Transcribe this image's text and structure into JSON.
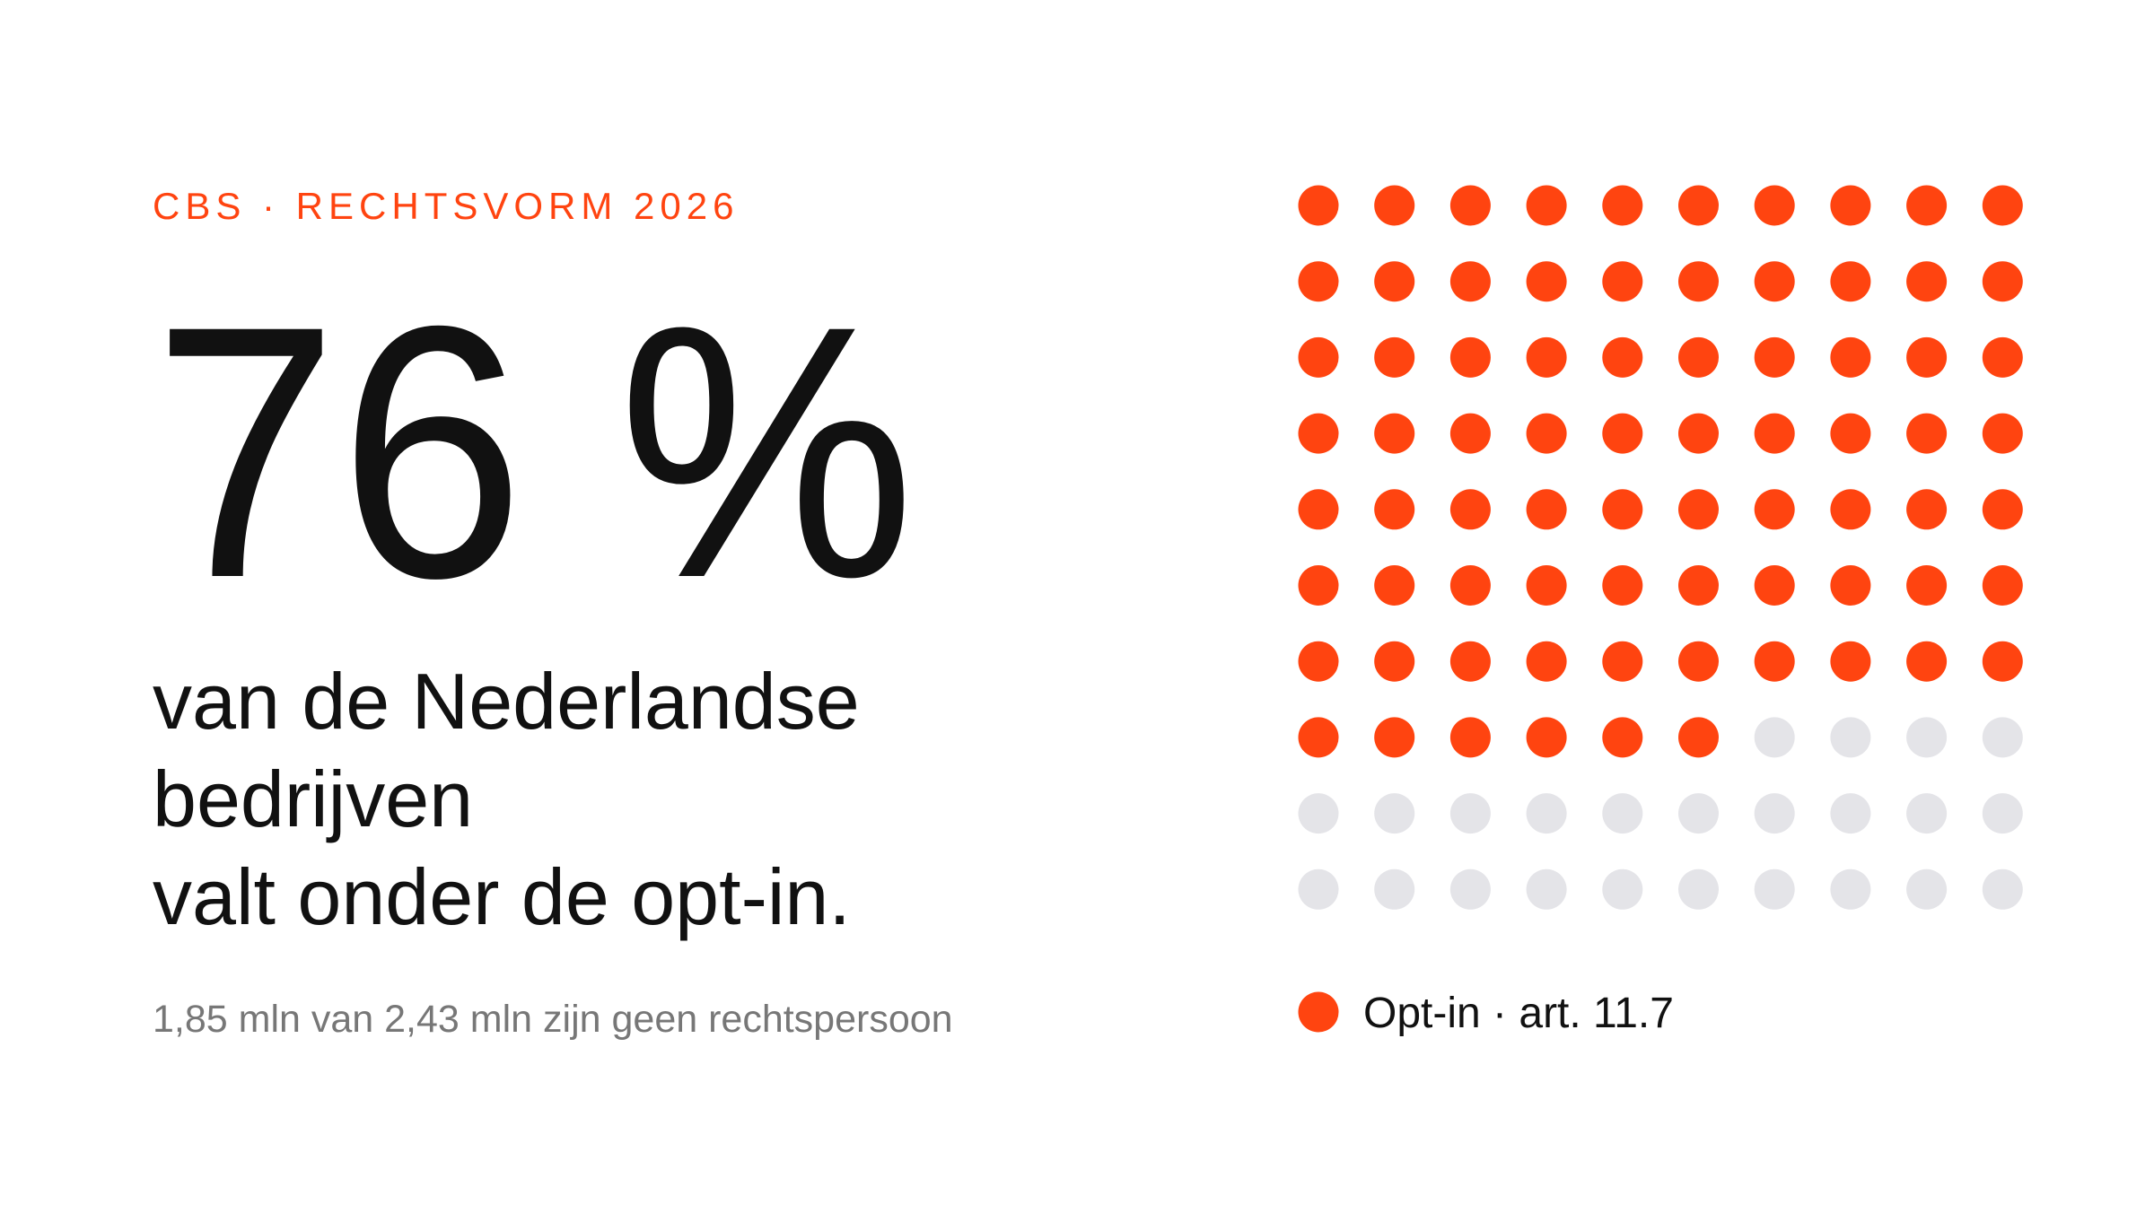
{
  "chart_data": {
    "type": "waffle",
    "kicker": "CBS · RECHTSVORM 2026",
    "values": [
      76
    ],
    "value_labels": [
      "76 %"
    ],
    "headline": [
      "van de Nederlandse",
      "bedrijven",
      "valt onder de opt-in."
    ],
    "subtitle": "1,85 mln van 2,43 mln zijn geen rechtspersoon",
    "series": [
      {
        "name": "Opt-in · art. 11.7",
        "color": "#ff4410"
      }
    ],
    "rest_color": "#e4e4e8"
  }
}
